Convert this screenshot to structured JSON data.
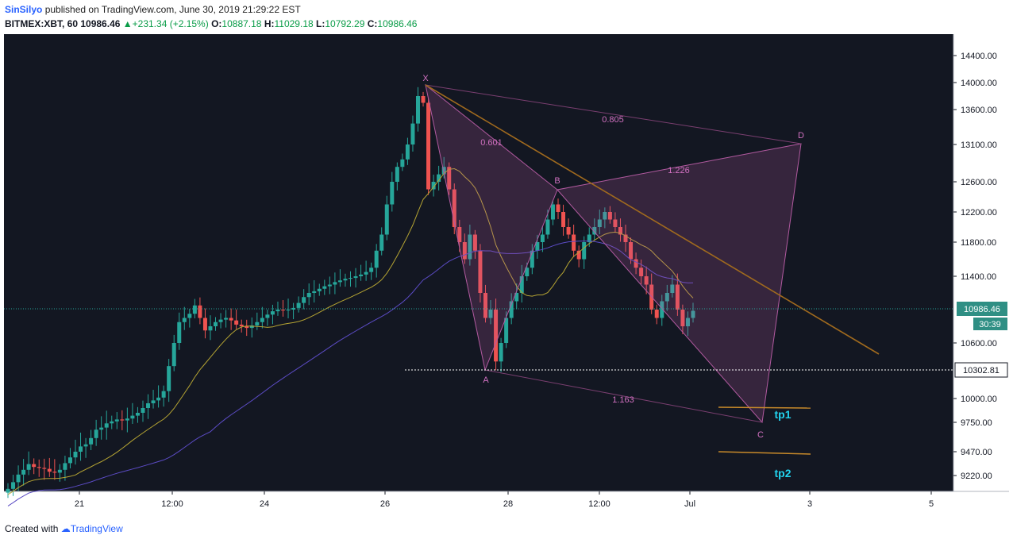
{
  "header": {
    "author": "SinSilyo",
    "published": "published on TradingView.com, June 30, 2019 21:29:22 EST",
    "symbol": "BITMEX:XBT, 60",
    "last": "10986.46",
    "change": "+231.34 (+2.15%)",
    "o_label": "O:",
    "o_value": "10887.18",
    "h_label": "H:",
    "h_value": "11029.18",
    "l_label": "L:",
    "l_value": "10792.29",
    "c_label": "C:",
    "c_value": "10986.46"
  },
  "footer": {
    "created": "Created with",
    "brand": "TradingView"
  },
  "colors": {
    "background": "#131722",
    "up": "#26a69a",
    "down": "#ef5350",
    "ma_fast": "#b5a433",
    "ma_slow": "#5b4bc4",
    "trendline": "#a06a1e",
    "harmonic": "#c86ab3",
    "tp": "#22d3ee",
    "price_badge": "#2f8f84"
  },
  "chart_data": {
    "type": "candlestick",
    "price_axis": {
      "ticks": [
        "14400.00",
        "14000.00",
        "13600.00",
        "13100.00",
        "12600.00",
        "12200.00",
        "11800.00",
        "11400.00",
        "10600.00",
        "10000.00",
        "9750.00",
        "9470.00",
        "9220.00"
      ],
      "current_price": "10986.46",
      "countdown": "30:39",
      "marked_level": "10302.81"
    },
    "time_axis": {
      "ticks": [
        "21",
        "12:00",
        "24",
        "26",
        "28",
        "12:00",
        "Jul",
        "3",
        "5"
      ]
    },
    "harmonic_pattern": {
      "points": [
        "X",
        "A",
        "B",
        "C",
        "D"
      ],
      "ratios": {
        "XA_AB": "0.601",
        "XD": "0.805",
        "BD": "1.226",
        "AC": "1.163"
      }
    },
    "targets": [
      "tp1",
      "tp2"
    ],
    "series": [
      {
        "name": "close",
        "values": [
          9080,
          9150,
          9230,
          9280,
          9340,
          9310,
          9300,
          9290,
          9260,
          9250,
          9280,
          9350,
          9410,
          9470,
          9520,
          9540,
          9600,
          9680,
          9700,
          9740,
          9760,
          9780,
          9770,
          9790,
          9820,
          9850,
          9900,
          9950,
          9980,
          10010,
          10080,
          10350,
          10600,
          10850,
          10900,
          10950,
          11050,
          10900,
          10750,
          10800,
          10850,
          10880,
          10900,
          10870,
          10820,
          10800,
          10780,
          10810,
          10850,
          10900,
          10940,
          10980,
          11000,
          10990,
          11000,
          11020,
          11080,
          11150,
          11200,
          11220,
          11250,
          11280,
          11300,
          11330,
          11350,
          11370,
          11380,
          11400,
          11420,
          11450,
          11500,
          11700,
          11900,
          12300,
          12600,
          12800,
          12900,
          13100,
          13400,
          13800,
          13700,
          12500,
          12600,
          12700,
          12800,
          12500,
          12000,
          11800,
          11600,
          11900,
          11700,
          11200,
          10900,
          11000,
          10400,
          10600,
          10900,
          11100,
          11200,
          11400,
          11500,
          11700,
          11800,
          11900,
          12100,
          12300,
          12200,
          12000,
          11900,
          11700,
          11600,
          11800,
          11900,
          12000,
          12100,
          12200,
          12100,
          12000,
          11900,
          11800,
          11600,
          11500,
          11400,
          11300,
          11000,
          10900,
          11100,
          11200,
          11300,
          11000,
          10800,
          10900,
          10986
        ]
      }
    ]
  }
}
